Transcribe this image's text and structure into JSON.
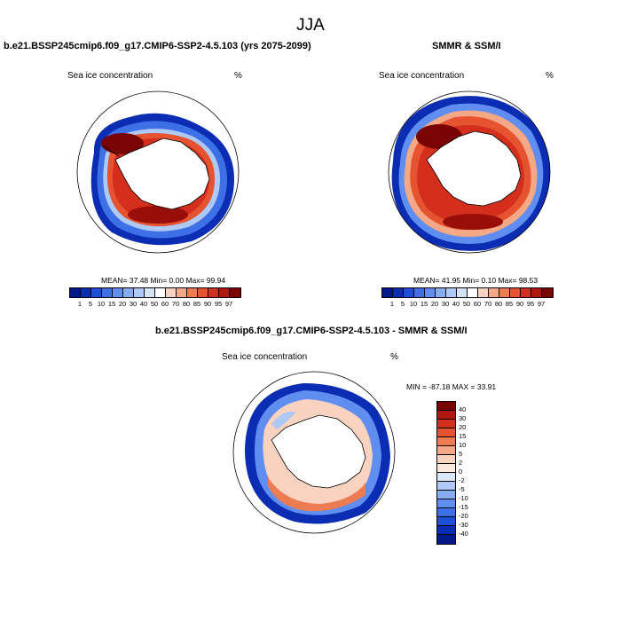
{
  "figure": {
    "title": "JJA"
  },
  "panels": {
    "model": {
      "title": "b.e21.BSSP245cmip6.f09_g17.CMIP6-SSP2-4.5.103 (yrs 2075-2099)",
      "variable": "Sea ice concentration",
      "units": "%",
      "stats": "MEAN=  37.48  Min=   0.00  Max=  99.94"
    },
    "obs": {
      "title": "SMMR & SSM/I",
      "variable": "Sea ice concentration",
      "units": "%",
      "stats": "MEAN=  41.95  Min=   0.10  Max=  98.53"
    },
    "diff": {
      "title": "b.e21.BSSP245cmip6.f09_g17.CMIP6-SSP2-4.5.103 - SMMR & SSM/I",
      "variable": "Sea ice concentration",
      "units": "%",
      "stats": "MIN = -87.18 MAX =  33.91"
    }
  },
  "colorbars": {
    "concentration": {
      "labels": [
        "1",
        "5",
        "10",
        "15",
        "20",
        "30",
        "40",
        "50",
        "60",
        "70",
        "80",
        "85",
        "90",
        "95",
        "97"
      ],
      "colors": [
        "#001a8c",
        "#0a2db4",
        "#1f4fd6",
        "#3d6fe6",
        "#5f8ef0",
        "#86acf2",
        "#aec9f5",
        "#d4e3f8",
        "#ffffff",
        "#f9d2c0",
        "#f4a886",
        "#ee7c52",
        "#e65330",
        "#d32f1c",
        "#b01711",
        "#7a0404"
      ]
    },
    "difference": {
      "labels": [
        "40",
        "30",
        "20",
        "15",
        "10",
        "5",
        "2",
        "0",
        "-2",
        "-5",
        "-10",
        "-15",
        "-20",
        "-30",
        "-40"
      ],
      "colors": [
        "#7a0404",
        "#b01711",
        "#d32f1c",
        "#e65330",
        "#ee7c52",
        "#f4a886",
        "#f9d2c0",
        "#fde9df",
        "#dbe7f8",
        "#aec9f5",
        "#86acf2",
        "#5f8ef0",
        "#3d6fe6",
        "#1f4fd6",
        "#0a2db4",
        "#001a8c"
      ]
    }
  },
  "map_colors": {
    "ocean": "#ffffff",
    "land": "#ffffff",
    "coast": "#000000"
  }
}
